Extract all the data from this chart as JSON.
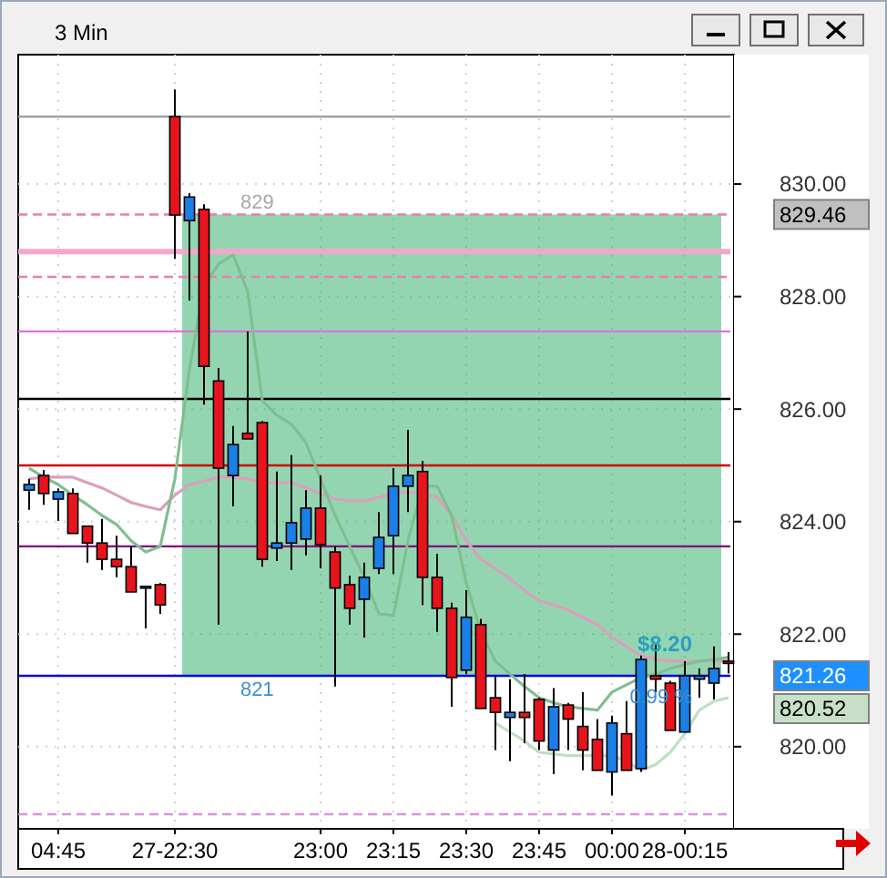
{
  "chart_data": {
    "type": "candlestick",
    "title": "3 Min",
    "categories": [
      null,
      null,
      "04:45",
      null,
      null,
      null,
      null,
      null,
      null,
      null,
      "27-22:30",
      null,
      null,
      null,
      null,
      null,
      null,
      null,
      null,
      null,
      "23:00",
      null,
      null,
      null,
      null,
      "23:15",
      null,
      null,
      null,
      null,
      "23:30",
      null,
      null,
      null,
      null,
      "23:45",
      null,
      null,
      null,
      null,
      "00:00",
      null,
      null,
      null,
      null,
      "28-00:15",
      null,
      null,
      null
    ],
    "ohlc": [
      [
        824.56,
        824.76,
        824.21,
        824.66
      ],
      [
        824.82,
        824.92,
        824.3,
        824.5
      ],
      [
        824.4,
        824.59,
        824.01,
        824.53
      ],
      [
        824.5,
        824.59,
        823.79,
        823.79
      ],
      [
        823.92,
        823.92,
        823.27,
        823.62
      ],
      [
        823.62,
        824.05,
        823.14,
        823.33
      ],
      [
        823.33,
        823.75,
        823.01,
        823.2
      ],
      [
        823.2,
        823.56,
        822.75,
        822.75
      ],
      [
        822.82,
        822.85,
        822.1,
        822.85
      ],
      [
        822.88,
        822.91,
        822.36,
        822.52
      ],
      [
        831.2,
        831.68,
        828.67,
        829.45
      ],
      [
        829.35,
        829.84,
        827.93,
        829.77
      ],
      [
        829.55,
        829.64,
        826.08,
        826.76
      ],
      [
        826.5,
        826.73,
        822.17,
        824.95
      ],
      [
        824.82,
        825.7,
        824.27,
        825.37
      ],
      [
        825.57,
        827.38,
        825.47,
        825.47
      ],
      [
        825.76,
        825.79,
        823.2,
        823.33
      ],
      [
        823.53,
        824.89,
        823.3,
        823.62
      ],
      [
        823.62,
        825.18,
        823.14,
        823.98
      ],
      [
        823.69,
        824.56,
        823.4,
        824.24
      ],
      [
        824.24,
        824.82,
        823.17,
        823.59
      ],
      [
        823.46,
        823.56,
        821.07,
        822.82
      ],
      [
        822.88,
        823.04,
        822.17,
        822.46
      ],
      [
        822.62,
        823.27,
        821.94,
        823.01
      ],
      [
        823.17,
        824.17,
        823.07,
        823.72
      ],
      [
        823.75,
        824.95,
        823.07,
        824.63
      ],
      [
        824.63,
        825.63,
        824.17,
        824.82
      ],
      [
        824.89,
        825.08,
        822.52,
        823.01
      ],
      [
        823.01,
        823.43,
        822.04,
        822.46
      ],
      [
        822.46,
        822.56,
        820.71,
        821.23
      ],
      [
        821.36,
        822.78,
        821.29,
        822.3
      ],
      [
        822.17,
        822.27,
        820.68,
        820.68
      ],
      [
        820.87,
        821.26,
        819.94,
        820.61
      ],
      [
        820.52,
        821.2,
        819.74,
        820.61
      ],
      [
        820.61,
        821.29,
        820.06,
        820.52
      ],
      [
        820.84,
        820.87,
        819.94,
        820.1
      ],
      [
        819.94,
        821.04,
        819.51,
        820.71
      ],
      [
        820.74,
        820.78,
        819.94,
        820.49
      ],
      [
        820.36,
        820.97,
        819.58,
        819.94
      ],
      [
        820.13,
        820.49,
        819.58,
        819.58
      ],
      [
        819.55,
        820.55,
        819.13,
        820.42
      ],
      [
        820.23,
        820.81,
        819.58,
        819.58
      ],
      [
        819.61,
        821.62,
        819.55,
        821.55
      ],
      [
        821.26,
        821.81,
        820.97,
        821.2
      ],
      [
        821.13,
        821.17,
        820.29,
        820.29
      ],
      [
        820.26,
        821.52,
        820.26,
        821.26
      ],
      [
        821.2,
        821.39,
        820.87,
        821.26
      ],
      [
        821.13,
        821.78,
        820.84,
        821.39
      ],
      [
        821.52,
        821.68,
        821.3,
        821.48
      ]
    ],
    "colors": [
      "#1a7fe6",
      "#e8141c",
      "#1a7fe6",
      "#e8141c",
      "#e8141c",
      "#e8141c",
      "#e8141c",
      "#e8141c",
      "#1a7fe6",
      "#e8141c",
      "#e8141c",
      "#1a7fe6",
      "#e8141c",
      "#e8141c",
      "#1a7fe6",
      "#e8141c",
      "#e8141c",
      "#1a7fe6",
      "#1a7fe6",
      "#1a7fe6",
      "#e8141c",
      "#e8141c",
      "#e8141c",
      "#1a7fe6",
      "#1a7fe6",
      "#1a7fe6",
      "#1a7fe6",
      "#e8141c",
      "#e8141c",
      "#e8141c",
      "#1a7fe6",
      "#e8141c",
      "#e8141c",
      "#1a7fe6",
      "#e8141c",
      "#e8141c",
      "#1a7fe6",
      "#e8141c",
      "#e8141c",
      "#e8141c",
      "#1a7fe6",
      "#e8141c",
      "#1a7fe6",
      "#e8141c",
      "#e8141c",
      "#1a7fe6",
      "#1a7fe6",
      "#1a7fe6",
      "#e8141c"
    ],
    "series": [
      {
        "type": "line",
        "color": "#d9a0bc",
        "values": [
          824.76,
          824.79,
          824.79,
          824.79,
          824.69,
          824.6,
          824.47,
          824.34,
          824.27,
          824.21,
          824.47,
          824.66,
          824.72,
          824.79,
          824.79,
          824.76,
          824.69,
          824.69,
          824.69,
          824.6,
          824.5,
          824.4,
          824.37,
          824.37,
          824.43,
          824.5,
          824.53,
          824.5,
          824.43,
          824.11,
          823.66,
          823.33,
          823.17,
          822.98,
          822.78,
          822.59,
          822.52,
          822.43,
          822.3,
          822.17,
          821.94,
          821.78,
          821.62,
          821.55,
          821.52,
          821.52,
          821.52,
          821.52,
          821.52
        ]
      },
      {
        "type": "line",
        "color": "#7fbf8f",
        "values": [
          824.95,
          824.79,
          824.66,
          824.47,
          824.3,
          824.11,
          823.95,
          823.66,
          823.46,
          823.56,
          824.76,
          826.7,
          828.19,
          828.58,
          828.74,
          828.09,
          826.15,
          825.89,
          825.73,
          825.4,
          824.76,
          824.11,
          823.56,
          823.01,
          822.36,
          822.33,
          823.66,
          824.63,
          824.63,
          824.11,
          822.91,
          822.04,
          821.52,
          821.29,
          821.07,
          820.87,
          820.78,
          820.71,
          820.68,
          820.65,
          820.97,
          821.1,
          821.23,
          821.29,
          821.39,
          821.46,
          821.52,
          821.55,
          821.59
        ]
      },
      {
        "type": "line",
        "color": "#bfe0c0",
        "values": [
          null,
          null,
          null,
          null,
          null,
          null,
          null,
          null,
          null,
          null,
          null,
          null,
          null,
          null,
          null,
          null,
          null,
          null,
          null,
          null,
          null,
          null,
          null,
          null,
          null,
          null,
          null,
          null,
          null,
          null,
          null,
          null,
          820.42,
          820.26,
          820.1,
          819.9,
          819.87,
          819.84,
          819.84,
          819.84,
          819.84,
          819.74,
          819.58,
          819.68,
          819.9,
          820.23,
          820.65,
          820.81,
          820.87
        ]
      }
    ],
    "ylim": [
      818.54,
      832.3
    ],
    "yticks": [
      {
        "value": 820,
        "label": "820.00"
      },
      {
        "value": 822,
        "label": "822.00"
      },
      {
        "value": 824,
        "label": "824.00"
      },
      {
        "value": 826,
        "label": "826.00"
      },
      {
        "value": 828,
        "label": "828.00"
      },
      {
        "value": 830,
        "label": "830.00"
      }
    ],
    "grid": true,
    "ref_lines": [
      {
        "axis": "y",
        "value": 831.2,
        "color": "#a0a0a0"
      },
      {
        "axis": "y",
        "value": 829.46,
        "label": "829.46",
        "color": "#f07ab0",
        "line_style": "dashed"
      },
      {
        "axis": "y",
        "value": 828.8,
        "color": "#f4a6cc"
      },
      {
        "axis": "y",
        "value": 828.35,
        "color": "#f07ab0",
        "line_style": "dashed"
      },
      {
        "axis": "y",
        "value": 827.38,
        "color": "#e070e0"
      },
      {
        "axis": "y",
        "value": 826.18,
        "color": "#000000"
      },
      {
        "axis": "y",
        "value": 825.0,
        "color": "#d00000"
      },
      {
        "axis": "y",
        "value": 823.56,
        "color": "#800080"
      },
      {
        "axis": "y",
        "value": 821.26,
        "label": "821.26",
        "color": "#0000e0"
      },
      {
        "axis": "y",
        "value": 818.8,
        "color": "#e090e0",
        "line_style": "dashed"
      }
    ],
    "bands": [
      {
        "axis": "y",
        "from": 821.26,
        "to": 829.46,
        "color": "#3cb371"
      }
    ],
    "annotations": [
      {
        "text": "829",
        "y": 829.46
      },
      {
        "text": "821",
        "y": 821.26
      },
      {
        "text": "$8.20",
        "y": 821.6
      },
      {
        "text": "0.99 %",
        "y": 821.1
      },
      "820.52"
    ]
  }
}
